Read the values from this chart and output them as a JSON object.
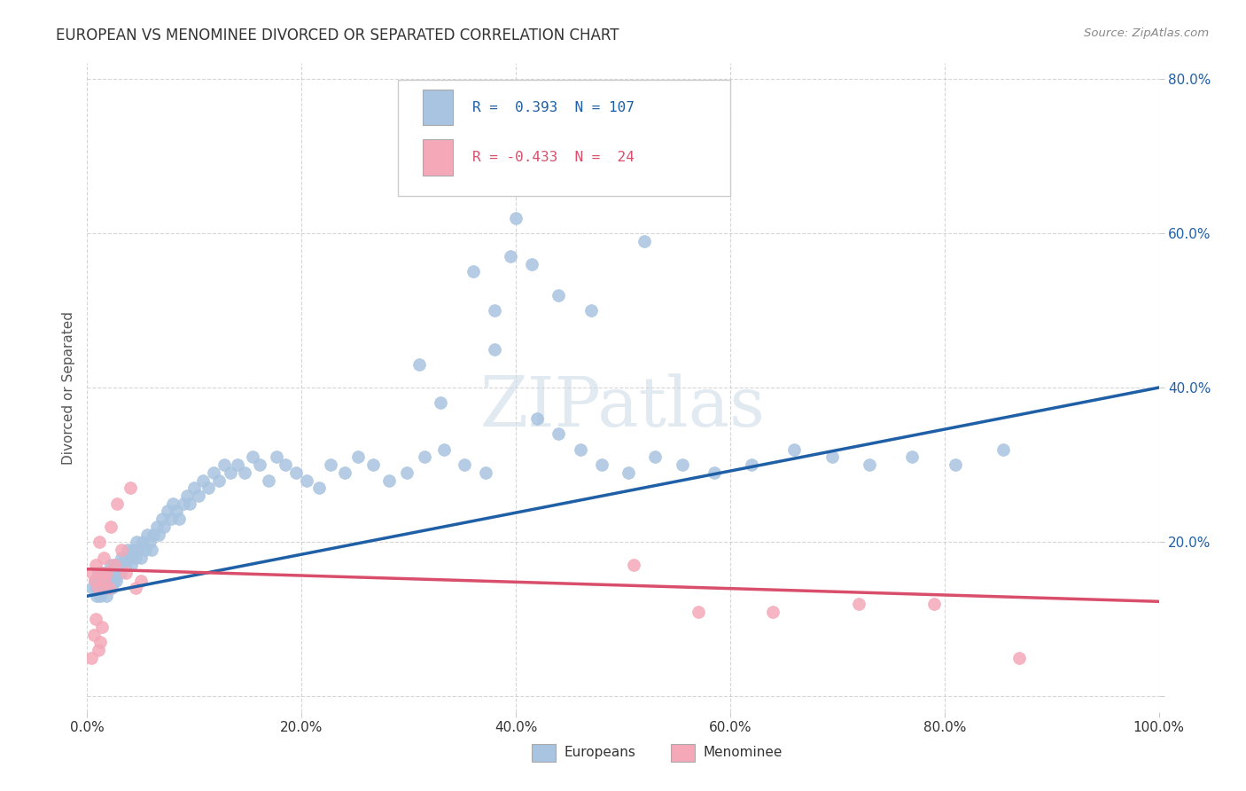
{
  "title": "EUROPEAN VS MENOMINEE DIVORCED OR SEPARATED CORRELATION CHART",
  "source": "Source: ZipAtlas.com",
  "ylabel": "Divorced or Separated",
  "xlim": [
    0.0,
    1.0
  ],
  "ylim": [
    -0.02,
    0.82
  ],
  "xticks": [
    0.0,
    0.2,
    0.4,
    0.6,
    0.8,
    1.0
  ],
  "xticklabels": [
    "0.0%",
    "20.0%",
    "40.0%",
    "60.0%",
    "80.0%",
    "100.0%"
  ],
  "yticks": [
    0.0,
    0.2,
    0.4,
    0.6,
    0.8
  ],
  "yticklabels": [
    "",
    "20.0%",
    "40.0%",
    "60.0%",
    "80.0%"
  ],
  "legend_labels": [
    "Europeans",
    "Menominee"
  ],
  "blue_color": "#A8C4E0",
  "pink_color": "#F4A8B8",
  "blue_line_color": "#1F5FA6",
  "pink_line_color": "#D94F6B",
  "watermark": "ZIPatlas",
  "background_color": "#ffffff",
  "grid_color": "#cccccc",
  "title_color": "#333333",
  "axis_label_color": "#555555",
  "tick_label_color_blue": "#1F5FA6",
  "blue_points_x": [
    0.005,
    0.007,
    0.008,
    0.009,
    0.01,
    0.01,
    0.011,
    0.012,
    0.012,
    0.013,
    0.014,
    0.015,
    0.015,
    0.016,
    0.016,
    0.017,
    0.018,
    0.019,
    0.02,
    0.02,
    0.021,
    0.022,
    0.022,
    0.023,
    0.024,
    0.025,
    0.025,
    0.026,
    0.027,
    0.028,
    0.03,
    0.031,
    0.032,
    0.033,
    0.035,
    0.036,
    0.038,
    0.04,
    0.041,
    0.043,
    0.045,
    0.046,
    0.048,
    0.05,
    0.052,
    0.054,
    0.056,
    0.058,
    0.06,
    0.062,
    0.065,
    0.067,
    0.07,
    0.072,
    0.075,
    0.078,
    0.08,
    0.083,
    0.086,
    0.09,
    0.093,
    0.096,
    0.1,
    0.104,
    0.108,
    0.113,
    0.118,
    0.123,
    0.128,
    0.134,
    0.14,
    0.147,
    0.154,
    0.161,
    0.169,
    0.177,
    0.185,
    0.195,
    0.205,
    0.216,
    0.227,
    0.24,
    0.253,
    0.267,
    0.282,
    0.298,
    0.315,
    0.333,
    0.352,
    0.372,
    0.38,
    0.395,
    0.415,
    0.44,
    0.46,
    0.48,
    0.505,
    0.53,
    0.555,
    0.585,
    0.62,
    0.66,
    0.695,
    0.73,
    0.77,
    0.81,
    0.855
  ],
  "blue_points_y": [
    0.14,
    0.15,
    0.14,
    0.13,
    0.16,
    0.15,
    0.14,
    0.16,
    0.13,
    0.15,
    0.16,
    0.14,
    0.15,
    0.14,
    0.16,
    0.15,
    0.13,
    0.16,
    0.15,
    0.14,
    0.16,
    0.15,
    0.17,
    0.14,
    0.16,
    0.15,
    0.17,
    0.16,
    0.15,
    0.17,
    0.17,
    0.16,
    0.18,
    0.17,
    0.18,
    0.17,
    0.19,
    0.18,
    0.17,
    0.19,
    0.18,
    0.2,
    0.19,
    0.18,
    0.2,
    0.19,
    0.21,
    0.2,
    0.19,
    0.21,
    0.22,
    0.21,
    0.23,
    0.22,
    0.24,
    0.23,
    0.25,
    0.24,
    0.23,
    0.25,
    0.26,
    0.25,
    0.27,
    0.26,
    0.28,
    0.27,
    0.29,
    0.28,
    0.3,
    0.29,
    0.3,
    0.29,
    0.31,
    0.3,
    0.28,
    0.31,
    0.3,
    0.29,
    0.28,
    0.27,
    0.3,
    0.29,
    0.31,
    0.3,
    0.28,
    0.29,
    0.31,
    0.32,
    0.3,
    0.29,
    0.45,
    0.57,
    0.56,
    0.52,
    0.32,
    0.3,
    0.29,
    0.31,
    0.3,
    0.29,
    0.3,
    0.32,
    0.31,
    0.3,
    0.31,
    0.3,
    0.32
  ],
  "pink_points_x": [
    0.005,
    0.007,
    0.008,
    0.01,
    0.011,
    0.013,
    0.015,
    0.016,
    0.018,
    0.02,
    0.022,
    0.025,
    0.028,
    0.032,
    0.036,
    0.04,
    0.045,
    0.05,
    0.51,
    0.57,
    0.64,
    0.72,
    0.79,
    0.87
  ],
  "pink_points_y": [
    0.16,
    0.15,
    0.17,
    0.14,
    0.2,
    0.16,
    0.18,
    0.15,
    0.16,
    0.14,
    0.22,
    0.17,
    0.25,
    0.19,
    0.16,
    0.27,
    0.14,
    0.15,
    0.17,
    0.11,
    0.11,
    0.12,
    0.12,
    0.05
  ],
  "blue_trend_start_y": 0.13,
  "blue_trend_end_y": 0.4,
  "pink_trend_start_y": 0.165,
  "pink_trend_end_y": 0.123
}
